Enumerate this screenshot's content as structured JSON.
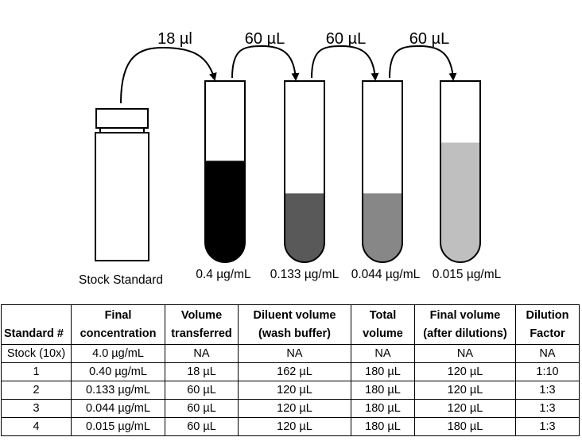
{
  "diagram": {
    "stock_label": "Stock Standard",
    "transfers": [
      "18 µl",
      "60 µL",
      "60 µL",
      "60 µL"
    ],
    "tubes": [
      {
        "concentration": "0.4 µg/mL",
        "fill_fraction": 0.56,
        "fill_color": "#000000"
      },
      {
        "concentration": "0.133 µg/mL",
        "fill_fraction": 0.38,
        "fill_color": "#595959"
      },
      {
        "concentration": "0.044 µg/mL",
        "fill_fraction": 0.38,
        "fill_color": "#878787"
      },
      {
        "concentration": "0.015 µg/mL",
        "fill_fraction": 0.66,
        "fill_color": "#bfbfbf"
      }
    ]
  },
  "table": {
    "headers": [
      [
        "",
        "Standard #"
      ],
      [
        "Final",
        "concentration"
      ],
      [
        "Volume",
        "transferred"
      ],
      [
        "Diluent volume",
        "(wash buffer)"
      ],
      [
        "Total",
        "volume"
      ],
      [
        "Final volume",
        "(after dilutions)"
      ],
      [
        "Dilution",
        "Factor"
      ]
    ],
    "rows": [
      [
        "Stock (10x)",
        "4.0 µg/mL",
        "NA",
        "NA",
        "NA",
        "NA",
        "NA"
      ],
      [
        "1",
        "0.40 µg/mL",
        "18 µL",
        "162 µL",
        "180 µL",
        "120 µL",
        "1:10"
      ],
      [
        "2",
        "0.133 µg/mL",
        "60 µL",
        "120 µL",
        "180 µL",
        "120 µL",
        "1:3"
      ],
      [
        "3",
        "0.044 µg/mL",
        "60 µL",
        "120 µL",
        "180 µL",
        "120 µL",
        "1:3"
      ],
      [
        "4",
        "0.015 µg/mL",
        "60 µL",
        "120 µL",
        "180 µL",
        "180 µL",
        "1:3"
      ]
    ]
  }
}
